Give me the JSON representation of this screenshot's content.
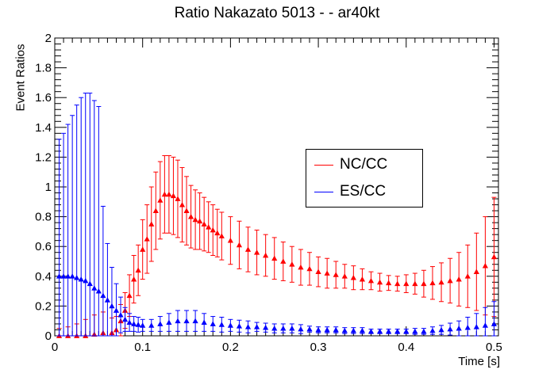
{
  "chart_data": {
    "type": "scatter",
    "title": "Ratio Nakazato 5013 -  - ar40kt",
    "xlabel": "Time [s]",
    "ylabel": "Event Ratios",
    "xlim": [
      0,
      0.505
    ],
    "ylim": [
      0,
      2
    ],
    "x_ticks": [
      "0",
      "0.1",
      "0.2",
      "0.3",
      "0.4",
      "0.5"
    ],
    "y_ticks": [
      "0",
      "0.2",
      "0.4",
      "0.6",
      "0.8",
      "1",
      "1.2",
      "1.4",
      "1.6",
      "1.8",
      "2"
    ],
    "grid": false,
    "legend_position": "center-right",
    "marker": "triangle-up",
    "series": [
      {
        "name": "NC/CC",
        "color": "#ff0000",
        "x": [
          0.005,
          0.015,
          0.025,
          0.035,
          0.045,
          0.055,
          0.065,
          0.07,
          0.075,
          0.08,
          0.085,
          0.09,
          0.095,
          0.1,
          0.105,
          0.11,
          0.115,
          0.12,
          0.125,
          0.13,
          0.135,
          0.14,
          0.145,
          0.15,
          0.155,
          0.16,
          0.165,
          0.17,
          0.175,
          0.18,
          0.185,
          0.19,
          0.2,
          0.21,
          0.22,
          0.23,
          0.24,
          0.25,
          0.26,
          0.27,
          0.28,
          0.29,
          0.3,
          0.31,
          0.32,
          0.33,
          0.34,
          0.35,
          0.36,
          0.37,
          0.38,
          0.39,
          0.4,
          0.41,
          0.42,
          0.43,
          0.44,
          0.45,
          0.46,
          0.47,
          0.48,
          0.49,
          0.5
        ],
        "y": [
          0.0,
          0.0,
          0.0,
          0.0,
          0.01,
          0.02,
          0.02,
          0.04,
          0.1,
          0.17,
          0.27,
          0.38,
          0.44,
          0.58,
          0.65,
          0.75,
          0.84,
          0.91,
          0.95,
          0.95,
          0.94,
          0.92,
          0.88,
          0.84,
          0.8,
          0.78,
          0.77,
          0.75,
          0.73,
          0.71,
          0.69,
          0.67,
          0.64,
          0.61,
          0.58,
          0.56,
          0.54,
          0.52,
          0.5,
          0.48,
          0.46,
          0.45,
          0.43,
          0.42,
          0.41,
          0.4,
          0.39,
          0.38,
          0.37,
          0.36,
          0.355,
          0.35,
          0.35,
          0.35,
          0.35,
          0.355,
          0.36,
          0.37,
          0.38,
          0.4,
          0.43,
          0.47,
          0.53
        ],
        "err": [
          0.05,
          0.06,
          0.08,
          0.11,
          0.13,
          0.14,
          0.1,
          0.09,
          0.11,
          0.12,
          0.14,
          0.16,
          0.17,
          0.2,
          0.23,
          0.25,
          0.26,
          0.26,
          0.26,
          0.26,
          0.26,
          0.26,
          0.25,
          0.23,
          0.21,
          0.2,
          0.19,
          0.18,
          0.17,
          0.17,
          0.16,
          0.16,
          0.16,
          0.16,
          0.15,
          0.15,
          0.14,
          0.14,
          0.13,
          0.12,
          0.12,
          0.11,
          0.1,
          0.1,
          0.09,
          0.08,
          0.08,
          0.07,
          0.06,
          0.06,
          0.05,
          0.05,
          0.06,
          0.07,
          0.09,
          0.11,
          0.13,
          0.15,
          0.18,
          0.21,
          0.26,
          0.33,
          0.4
        ]
      },
      {
        "name": "ES/CC",
        "color": "#0000ff",
        "x": [
          0.005,
          0.01,
          0.015,
          0.02,
          0.025,
          0.03,
          0.035,
          0.04,
          0.045,
          0.05,
          0.055,
          0.06,
          0.065,
          0.07,
          0.075,
          0.08,
          0.085,
          0.09,
          0.095,
          0.1,
          0.11,
          0.12,
          0.13,
          0.14,
          0.15,
          0.16,
          0.17,
          0.18,
          0.19,
          0.2,
          0.21,
          0.22,
          0.23,
          0.24,
          0.25,
          0.26,
          0.27,
          0.28,
          0.29,
          0.3,
          0.31,
          0.32,
          0.33,
          0.34,
          0.35,
          0.36,
          0.37,
          0.38,
          0.39,
          0.4,
          0.41,
          0.42,
          0.43,
          0.44,
          0.45,
          0.46,
          0.47,
          0.48,
          0.49,
          0.5
        ],
        "y": [
          0.4,
          0.4,
          0.4,
          0.4,
          0.39,
          0.38,
          0.37,
          0.35,
          0.32,
          0.3,
          0.27,
          0.24,
          0.2,
          0.17,
          0.14,
          0.11,
          0.09,
          0.08,
          0.075,
          0.07,
          0.07,
          0.08,
          0.09,
          0.1,
          0.1,
          0.1,
          0.09,
          0.08,
          0.075,
          0.07,
          0.065,
          0.06,
          0.06,
          0.055,
          0.05,
          0.05,
          0.05,
          0.045,
          0.045,
          0.04,
          0.04,
          0.04,
          0.035,
          0.035,
          0.035,
          0.03,
          0.03,
          0.03,
          0.03,
          0.03,
          0.03,
          0.03,
          0.035,
          0.04,
          0.045,
          0.05,
          0.055,
          0.06,
          0.07,
          0.08
        ],
        "err": [
          0.92,
          0.96,
          1.02,
          1.08,
          1.16,
          1.22,
          1.26,
          1.28,
          1.26,
          1.24,
          0.6,
          0.38,
          0.26,
          0.18,
          0.12,
          0.08,
          0.06,
          0.05,
          0.05,
          0.04,
          0.04,
          0.05,
          0.06,
          0.07,
          0.07,
          0.07,
          0.06,
          0.05,
          0.05,
          0.04,
          0.04,
          0.04,
          0.03,
          0.03,
          0.03,
          0.03,
          0.03,
          0.03,
          0.02,
          0.02,
          0.02,
          0.02,
          0.02,
          0.02,
          0.02,
          0.015,
          0.015,
          0.015,
          0.015,
          0.015,
          0.02,
          0.02,
          0.025,
          0.03,
          0.04,
          0.05,
          0.07,
          0.09,
          0.12,
          0.15
        ]
      }
    ]
  }
}
